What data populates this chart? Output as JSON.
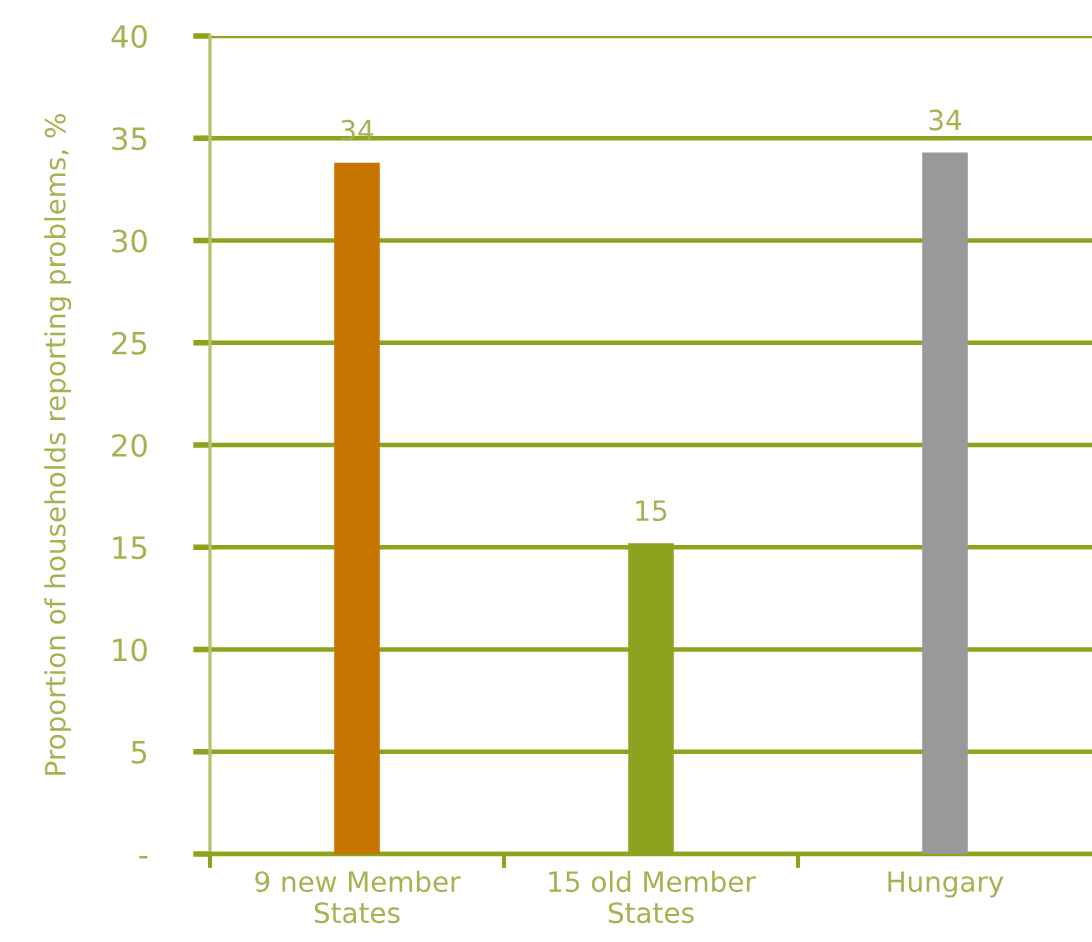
{
  "chart_data": {
    "type": "bar",
    "ylabel": "Proportion of households reporting problems, %",
    "categories": [
      "9 new Member States",
      "15 old Member States",
      "Hungary"
    ],
    "values": [
      33.8,
      15.2,
      34.3
    ],
    "colors": [
      "#c87400",
      "#8fa220",
      "#999999"
    ],
    "value_labels": [
      "34",
      "15",
      "34"
    ],
    "ylim": [
      0,
      40
    ],
    "yticks": [
      {
        "value": 0,
        "label": "-"
      },
      5,
      10,
      15,
      20,
      25,
      30,
      35,
      40
    ],
    "grid": "y"
  }
}
